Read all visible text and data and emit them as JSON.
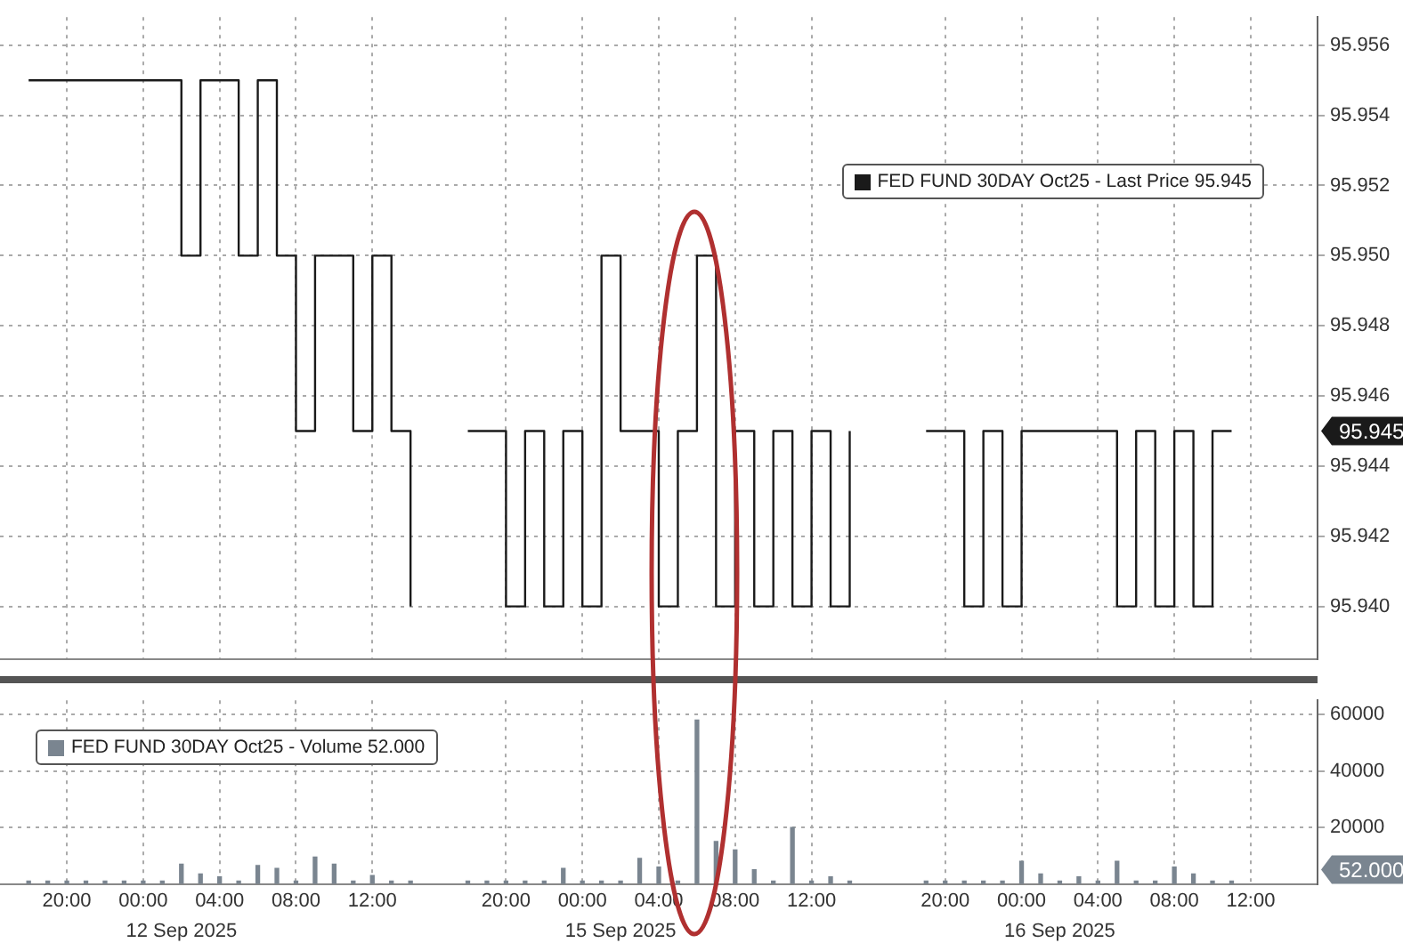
{
  "chart_data": [
    {
      "type": "step",
      "categories": [
        null,
        null,
        null,
        null,
        null,
        null,
        null,
        null,
        null,
        null,
        null,
        null,
        null,
        null,
        null,
        null,
        null,
        null,
        null,
        null,
        null,
        null,
        null,
        null,
        null,
        null,
        null,
        null,
        null,
        null,
        null,
        null,
        null,
        null,
        null,
        null,
        null,
        null,
        null,
        null,
        null,
        null,
        null,
        null,
        null,
        null,
        null,
        null,
        null,
        null,
        null,
        null,
        null,
        null,
        null,
        null,
        null,
        null,
        null,
        null,
        null,
        null,
        null,
        null,
        null,
        null,
        null,
        null,
        null
      ],
      "ylim": [
        95.9385,
        95.9568
      ],
      "yticks": [
        {
          "value": 95.94,
          "label": "95.940"
        },
        {
          "value": 95.942,
          "label": "95.942"
        },
        {
          "value": 95.944,
          "label": "95.944"
        },
        {
          "value": 95.946,
          "label": "95.946"
        },
        {
          "value": 95.948,
          "label": "95.948"
        },
        {
          "value": 95.95,
          "label": "95.950"
        },
        {
          "value": 95.952,
          "label": "95.952"
        },
        {
          "value": 95.954,
          "label": "95.954"
        },
        {
          "value": 95.956,
          "label": "95.956"
        }
      ],
      "tick_labels": "y",
      "grid": true,
      "legend": "top right",
      "annotations": [
        "95.945"
      ],
      "series": [
        {
          "name": "FED FUND 30DAY Oct25 - Last Price 95.945",
          "color": "#1a1a1a",
          "values": [
            null,
            95.955,
            95.955,
            95.955,
            95.955,
            95.955,
            95.955,
            95.955,
            95.955,
            95.95,
            95.955,
            95.955,
            95.95,
            95.955,
            95.95,
            95.945,
            95.95,
            95.95,
            95.945,
            95.95,
            95.945,
            95.94,
            null,
            null,
            95.945,
            95.945,
            95.94,
            95.945,
            95.94,
            95.945,
            95.94,
            95.95,
            95.945,
            95.945,
            95.94,
            95.945,
            95.95,
            95.94,
            95.945,
            95.94,
            95.945,
            95.94,
            95.945,
            95.94,
            95.945,
            null,
            null,
            null,
            95.945,
            95.945,
            95.94,
            95.945,
            95.94,
            95.945,
            95.945,
            95.945,
            95.945,
            95.945,
            95.94,
            95.945,
            95.94,
            95.945,
            95.94,
            95.945,
            95.945,
            null,
            null,
            null,
            null
          ]
        }
      ]
    },
    {
      "type": "bar",
      "categories": [
        null,
        null,
        null,
        "20:00",
        null,
        null,
        null,
        "00:00",
        null,
        null,
        null,
        "04:00",
        null,
        null,
        null,
        "08:00",
        null,
        null,
        null,
        "12:00",
        null,
        null,
        null,
        null,
        null,
        null,
        "20:00",
        null,
        null,
        null,
        "00:00",
        null,
        null,
        null,
        "04:00",
        null,
        null,
        null,
        "08:00",
        null,
        null,
        null,
        "12:00",
        null,
        null,
        null,
        null,
        null,
        null,
        "20:00",
        null,
        null,
        null,
        "00:00",
        null,
        null,
        null,
        "04:00",
        null,
        null,
        null,
        "08:00",
        null,
        null,
        null,
        "12:00",
        null,
        null,
        null
      ],
      "ylim": [
        0,
        65000
      ],
      "yticks": [
        20000,
        40000,
        60000
      ],
      "grid": true,
      "legend": "top left",
      "annotations": [
        "52.000",
        "12 Sep 2025",
        "15 Sep 2025",
        "16 Sep 2025"
      ],
      "series": [
        {
          "name": "FED FUND 30DAY Oct25 - Volume 52.000",
          "color": "#7a8590",
          "values": [
            null,
            1000,
            1000,
            1000,
            1000,
            1000,
            1000,
            1000,
            1000,
            7000,
            3500,
            2500,
            1000,
            6500,
            5500,
            1000,
            9500,
            7000,
            1000,
            3000,
            1000,
            1000,
            null,
            null,
            1000,
            1000,
            1000,
            1000,
            1000,
            5500,
            1000,
            1000,
            1000,
            9000,
            6000,
            1000,
            58000,
            15000,
            12000,
            5000,
            1000,
            20000,
            1000,
            2500,
            1000,
            null,
            null,
            null,
            1000,
            1000,
            1000,
            1000,
            1000,
            8000,
            3500,
            1000,
            2500,
            1000,
            8000,
            1000,
            1000,
            6000,
            3500,
            1000,
            1000,
            null,
            null,
            null,
            null
          ]
        }
      ]
    }
  ]
}
